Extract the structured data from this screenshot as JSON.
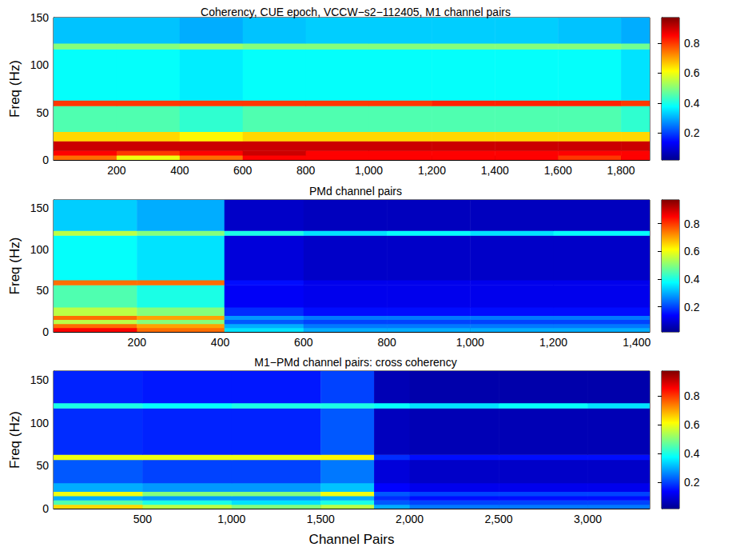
{
  "chart_data": [
    {
      "type": "heatmap",
      "title": "Coherency, CUE epoch, VCCW−s2−112405, M1 channel pairs",
      "ylabel": "Freq (Hz)",
      "xlim": [
        0,
        1891
      ],
      "xticks": [
        200,
        400,
        600,
        800,
        1000,
        1200,
        1400,
        1600,
        1800
      ],
      "ylim": [
        0,
        150
      ],
      "yticks": [
        0,
        50,
        100,
        150
      ],
      "x_edges": [
        0,
        200,
        400,
        600,
        800,
        1000,
        1200,
        1400,
        1600,
        1800,
        1891
      ],
      "y_edges": [
        0,
        5,
        10,
        20,
        30,
        57,
        63,
        117,
        123,
        150
      ],
      "cells": [
        [
          0.75,
          0.6,
          0.75,
          0.85,
          0.85,
          0.85,
          0.85,
          0.85,
          0.8,
          0.85
        ],
        [
          0.85,
          0.8,
          0.85,
          0.9,
          0.85,
          0.85,
          0.85,
          0.85,
          0.85,
          0.85
        ],
        [
          0.9,
          0.9,
          0.9,
          0.9,
          0.9,
          0.9,
          0.9,
          0.9,
          0.9,
          0.9
        ],
        [
          0.65,
          0.65,
          0.62,
          0.65,
          0.65,
          0.65,
          0.65,
          0.65,
          0.65,
          0.65
        ],
        [
          0.45,
          0.45,
          0.42,
          0.45,
          0.45,
          0.45,
          0.45,
          0.45,
          0.45,
          0.42
        ],
        [
          0.8,
          0.8,
          0.8,
          0.8,
          0.8,
          0.8,
          0.82,
          0.82,
          0.82,
          0.8
        ],
        [
          0.38,
          0.38,
          0.36,
          0.38,
          0.38,
          0.38,
          0.38,
          0.38,
          0.38,
          0.35
        ],
        [
          0.5,
          0.5,
          0.52,
          0.5,
          0.5,
          0.5,
          0.5,
          0.5,
          0.5,
          0.48
        ],
        [
          0.32,
          0.32,
          0.3,
          0.32,
          0.33,
          0.33,
          0.33,
          0.33,
          0.32,
          0.3
        ]
      ],
      "colorbar": {
        "clim": [
          0.02,
          0.97
        ],
        "cticks": [
          0.2,
          0.4,
          0.6,
          0.8
        ]
      }
    },
    {
      "type": "heatmap",
      "title": "PMd channel pairs",
      "ylabel": "Freq (Hz)",
      "xlim": [
        0,
        1431
      ],
      "xticks": [
        200,
        400,
        600,
        800,
        1000,
        1200,
        1400
      ],
      "ylim": [
        0,
        160
      ],
      "yticks": [
        0,
        50,
        100,
        150
      ],
      "x_edges": [
        0,
        200,
        410,
        600,
        800,
        1000,
        1200,
        1431
      ],
      "y_edges": [
        0,
        5,
        10,
        15,
        20,
        30,
        57,
        63,
        117,
        123,
        160
      ],
      "cells": [
        [
          0.85,
          0.75,
          0.35,
          0.3,
          0.3,
          0.3,
          0.3
        ],
        [
          0.75,
          0.7,
          0.3,
          0.25,
          0.25,
          0.25,
          0.25
        ],
        [
          0.55,
          0.5,
          0.22,
          0.2,
          0.2,
          0.2,
          0.2
        ],
        [
          0.75,
          0.7,
          0.28,
          0.25,
          0.25,
          0.25,
          0.25
        ],
        [
          0.55,
          0.5,
          0.18,
          0.15,
          0.15,
          0.15,
          0.15
        ],
        [
          0.45,
          0.4,
          0.13,
          0.12,
          0.12,
          0.12,
          0.12
        ],
        [
          0.75,
          0.75,
          0.15,
          0.12,
          0.12,
          0.12,
          0.12
        ],
        [
          0.38,
          0.35,
          0.1,
          0.08,
          0.08,
          0.08,
          0.08
        ],
        [
          0.55,
          0.5,
          0.4,
          0.35,
          0.38,
          0.35,
          0.38
        ],
        [
          0.33,
          0.3,
          0.08,
          0.07,
          0.07,
          0.07,
          0.07
        ]
      ],
      "colorbar": {
        "clim": [
          0.02,
          0.97
        ],
        "cticks": [
          0.2,
          0.4,
          0.6,
          0.8
        ]
      }
    },
    {
      "type": "heatmap",
      "title": "M1−PMd channel pairs: cross coherency",
      "ylabel": "Freq (Hz)",
      "xlabel": "Channel Pairs",
      "xlim": [
        0,
        3348
      ],
      "xticks": [
        500,
        1000,
        1500,
        2000,
        2500,
        3000
      ],
      "ylim": [
        0,
        160
      ],
      "yticks": [
        0,
        50,
        100,
        150
      ],
      "x_edges": [
        0,
        500,
        1000,
        1500,
        1800,
        2000,
        2500,
        3000,
        3348
      ],
      "y_edges": [
        0,
        5,
        10,
        15,
        20,
        30,
        57,
        63,
        117,
        123,
        160
      ],
      "cells": [
        [
          0.65,
          0.55,
          0.5,
          0.55,
          0.3,
          0.25,
          0.25,
          0.25
        ],
        [
          0.45,
          0.4,
          0.35,
          0.4,
          0.22,
          0.2,
          0.2,
          0.2
        ],
        [
          0.3,
          0.28,
          0.28,
          0.3,
          0.18,
          0.15,
          0.15,
          0.15
        ],
        [
          0.6,
          0.5,
          0.5,
          0.6,
          0.22,
          0.2,
          0.2,
          0.2
        ],
        [
          0.3,
          0.28,
          0.28,
          0.32,
          0.14,
          0.12,
          0.12,
          0.12
        ],
        [
          0.22,
          0.2,
          0.2,
          0.25,
          0.1,
          0.08,
          0.08,
          0.08
        ],
        [
          0.6,
          0.6,
          0.6,
          0.62,
          0.18,
          0.15,
          0.15,
          0.15
        ],
        [
          0.18,
          0.17,
          0.17,
          0.22,
          0.07,
          0.06,
          0.06,
          0.06
        ],
        [
          0.4,
          0.38,
          0.4,
          0.4,
          0.38,
          0.35,
          0.38,
          0.35
        ],
        [
          0.17,
          0.16,
          0.16,
          0.2,
          0.06,
          0.05,
          0.05,
          0.05
        ]
      ],
      "colorbar": {
        "clim": [
          0.02,
          0.97
        ],
        "cticks": [
          0.2,
          0.4,
          0.6,
          0.8
        ]
      }
    }
  ]
}
